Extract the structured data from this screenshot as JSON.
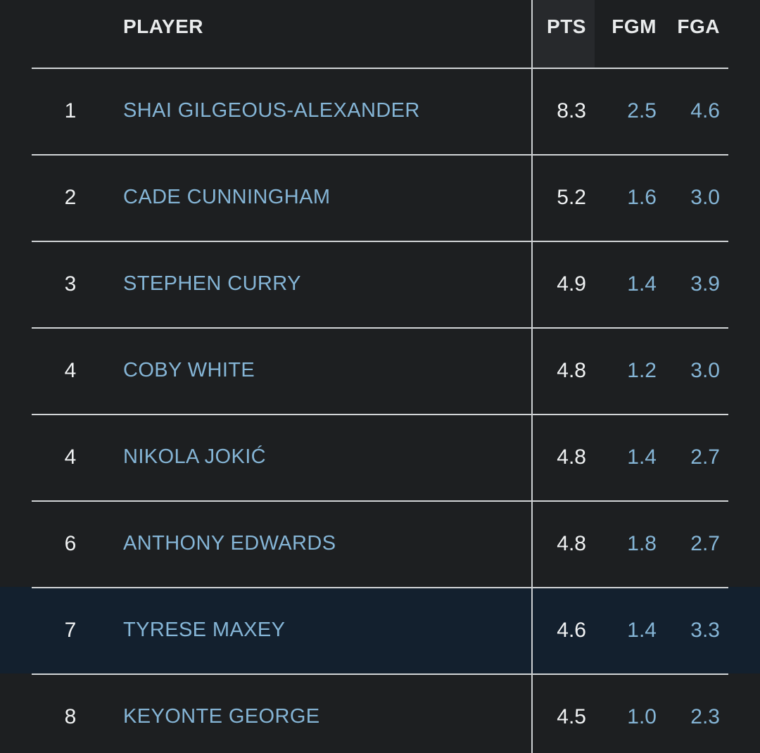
{
  "header": {
    "player_label": "PLAYER",
    "pts_label": "PTS",
    "fgm_label": "FGM",
    "fga_label": "FGA"
  },
  "table": {
    "rows": [
      {
        "rank": "1",
        "player": "SHAI GILGEOUS-ALEXANDER",
        "pts": "8.3",
        "fgm": "2.5",
        "fga": "4.6",
        "highlighted": false
      },
      {
        "rank": "2",
        "player": "CADE CUNNINGHAM",
        "pts": "5.2",
        "fgm": "1.6",
        "fga": "3.0",
        "highlighted": false
      },
      {
        "rank": "3",
        "player": "STEPHEN CURRY",
        "pts": "4.9",
        "fgm": "1.4",
        "fga": "3.9",
        "highlighted": false
      },
      {
        "rank": "4",
        "player": "COBY WHITE",
        "pts": "4.8",
        "fgm": "1.2",
        "fga": "3.0",
        "highlighted": false
      },
      {
        "rank": "4",
        "player": "NIKOLA JOKIĆ",
        "pts": "4.8",
        "fgm": "1.4",
        "fga": "2.7",
        "highlighted": false
      },
      {
        "rank": "6",
        "player": "ANTHONY EDWARDS",
        "pts": "4.8",
        "fgm": "1.8",
        "fga": "2.7",
        "highlighted": false
      },
      {
        "rank": "7",
        "player": "TYRESE MAXEY",
        "pts": "4.6",
        "fgm": "1.4",
        "fga": "3.3",
        "highlighted": true
      },
      {
        "rank": "8",
        "player": "KEYONTE GEORGE",
        "pts": "4.5",
        "fgm": "1.0",
        "fga": "2.3",
        "highlighted": false
      }
    ]
  },
  "colors": {
    "background": "#1d1f21",
    "accent_blue": "#85b5d6",
    "highlight_row": "#13202e",
    "separator": "#d2d5d7",
    "sorted_column_header_bg": "#27292c",
    "text_primary": "#eff1f2"
  }
}
